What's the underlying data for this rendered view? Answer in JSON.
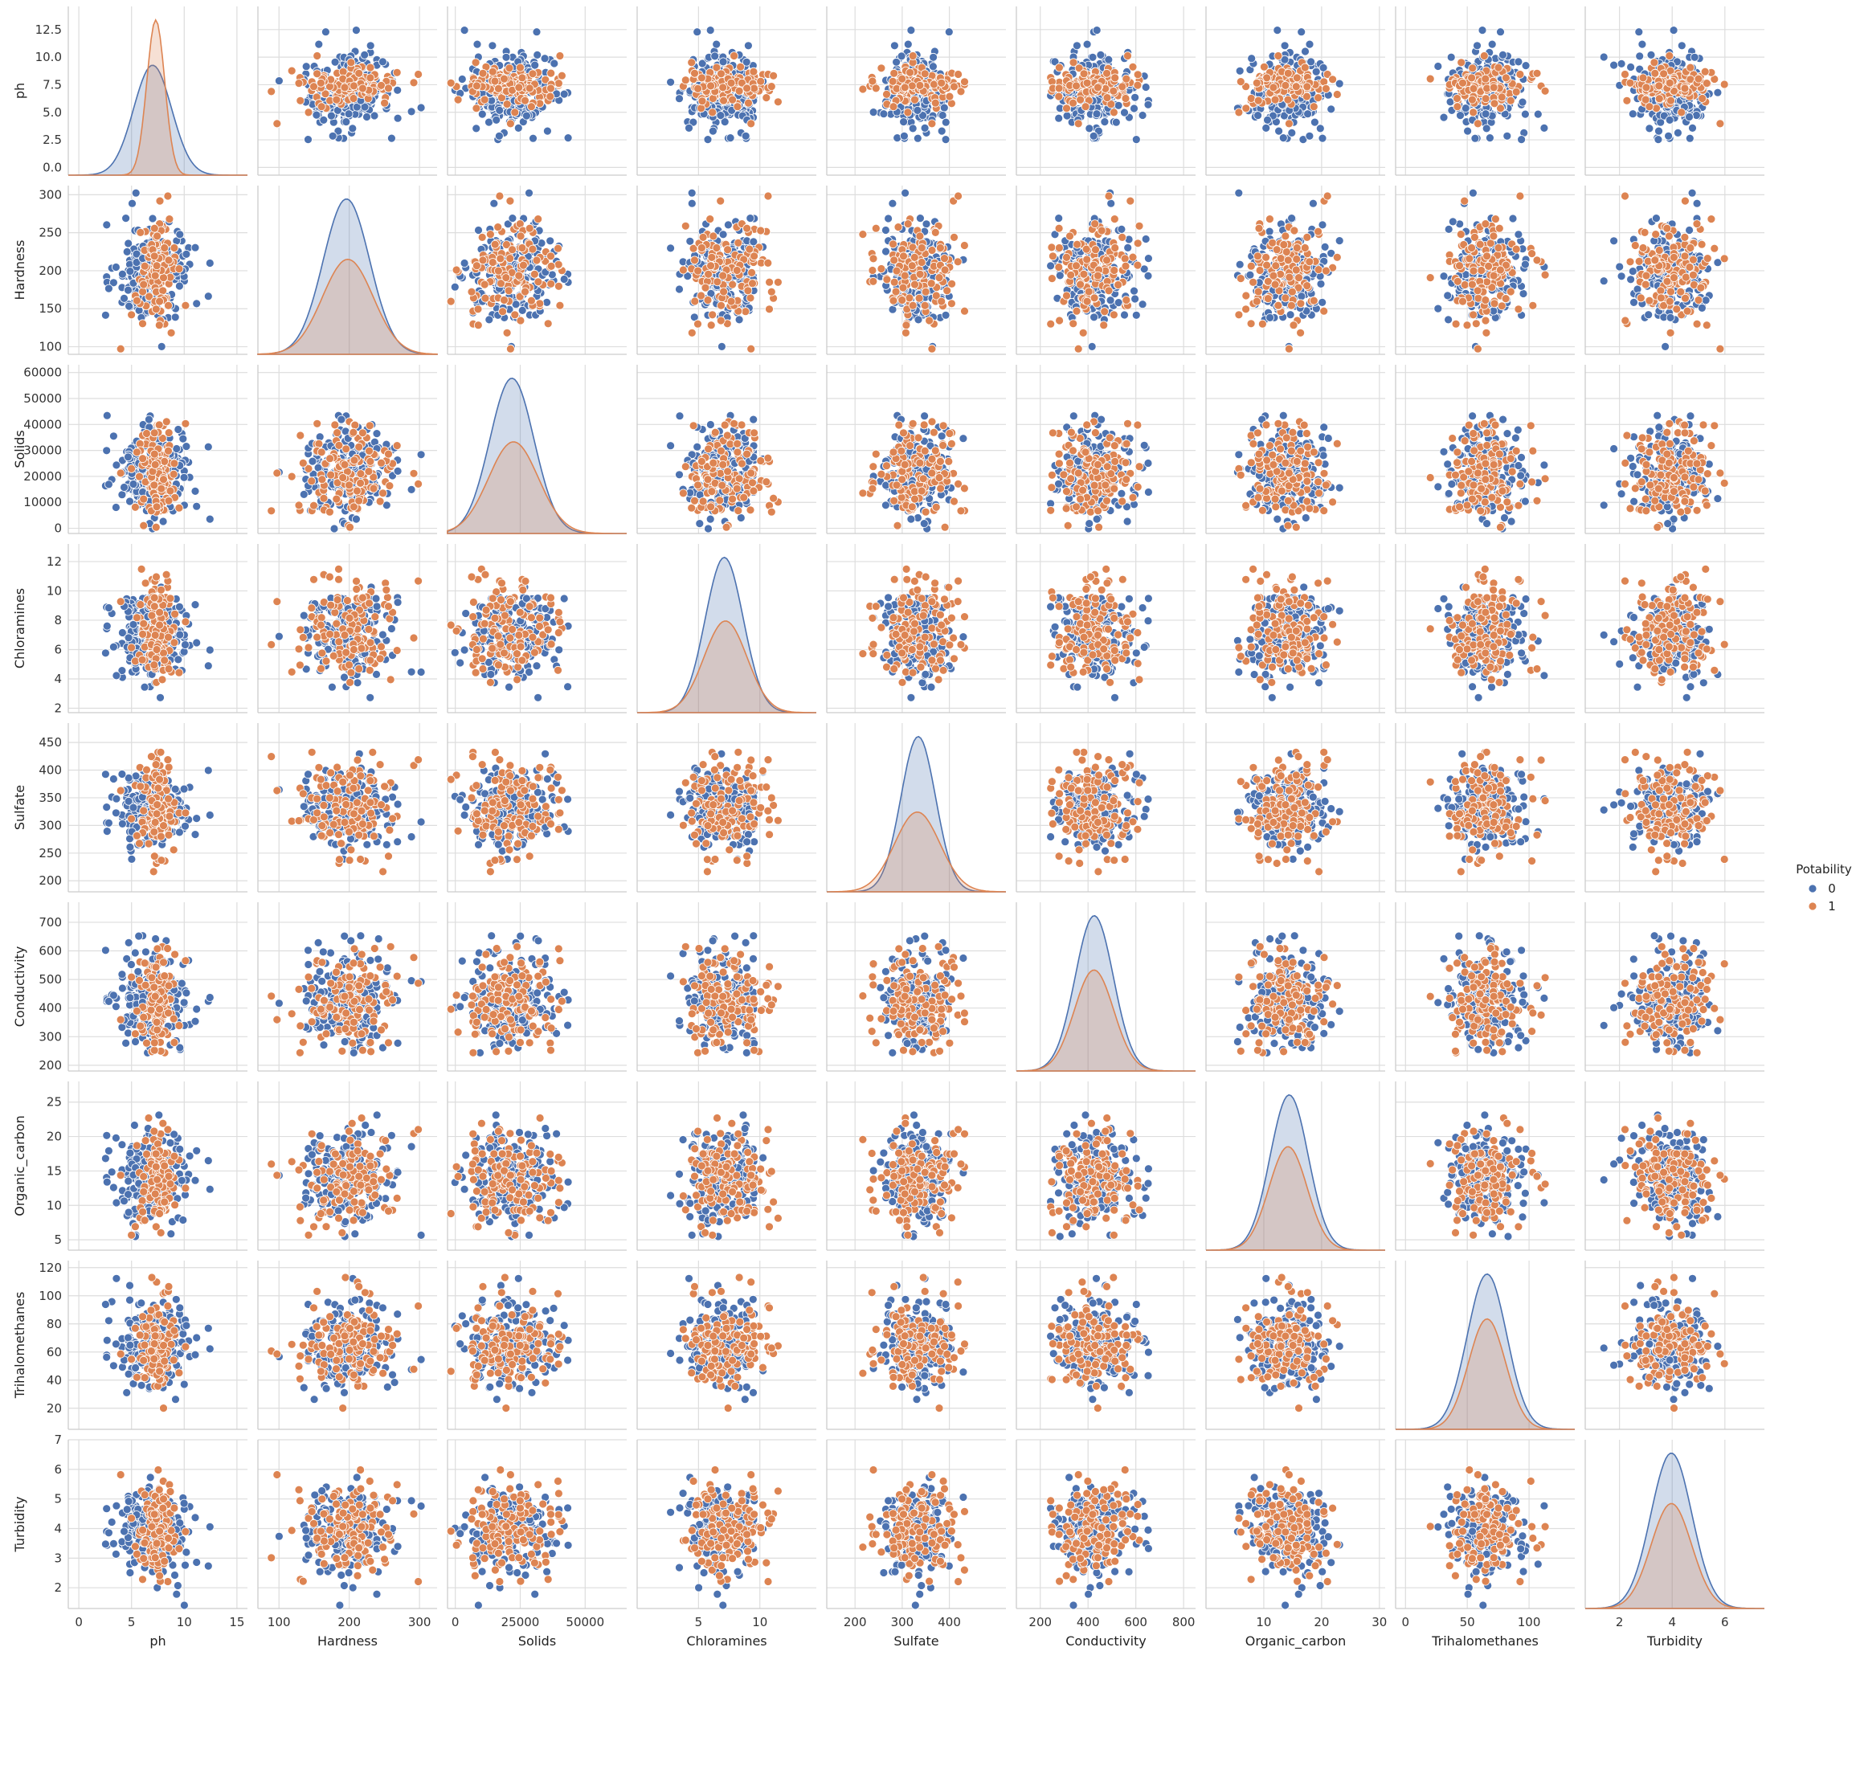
{
  "chart_data": {
    "type": "scatter",
    "subtype": "pairplot",
    "variables": [
      "ph",
      "Hardness",
      "Solids",
      "Chloramines",
      "Sulfate",
      "Conductivity",
      "Organic_carbon",
      "Trihalomethanes",
      "Turbidity"
    ],
    "hue": "Potability",
    "legend": {
      "title": "Potability",
      "placement": "right-center",
      "entries": [
        {
          "label": "0",
          "color": "#4c72b0"
        },
        {
          "label": "1",
          "color": "#dd8452"
        }
      ]
    },
    "grid": true,
    "diagonal": "kde",
    "axes": [
      {
        "name": "ph",
        "range": [
          -1,
          16
        ],
        "ticks": [
          0,
          5,
          10,
          15
        ],
        "tick_labels": [
          "0",
          "5",
          "10",
          "15"
        ],
        "y_range": [
          -0.7,
          14.6
        ],
        "y_ticks": [
          0,
          2.5,
          5,
          7.5,
          10,
          12.5
        ],
        "y_tick_labels": [
          "0.0",
          "2.5",
          "5.0",
          "7.5",
          "10.0",
          "12.5"
        ]
      },
      {
        "name": "Hardness",
        "range": [
          70,
          325
        ],
        "ticks": [
          100,
          200,
          300
        ],
        "tick_labels": [
          "100",
          "200",
          "300"
        ],
        "y_range": [
          90,
          312
        ],
        "y_ticks": [
          100,
          150,
          200,
          250,
          300
        ],
        "y_tick_labels": [
          "100",
          "150",
          "200",
          "250",
          "300"
        ]
      },
      {
        "name": "Solids",
        "range": [
          -3000,
          66000
        ],
        "ticks": [
          0,
          25000,
          50000
        ],
        "tick_labels": [
          "0",
          "25000",
          "50000"
        ],
        "y_range": [
          -2000,
          63000
        ],
        "y_ticks": [
          0,
          10000,
          20000,
          30000,
          40000,
          50000,
          60000
        ],
        "y_tick_labels": [
          "0",
          "10000",
          "20000",
          "30000",
          "40000",
          "50000",
          "60000"
        ]
      },
      {
        "name": "Chloramines",
        "range": [
          0,
          14.6
        ],
        "ticks": [
          5,
          10
        ],
        "tick_labels": [
          "5",
          "10"
        ],
        "y_range": [
          1.7,
          13.2
        ],
        "y_ticks": [
          2,
          4,
          6,
          8,
          10,
          12
        ],
        "y_tick_labels": [
          "2",
          "4",
          "6",
          "8",
          "10",
          "12"
        ]
      },
      {
        "name": "Sulfate",
        "range": [
          140,
          520
        ],
        "ticks": [
          200,
          300,
          400
        ],
        "tick_labels": [
          "200",
          "300",
          "400"
        ],
        "y_range": [
          180,
          485
        ],
        "y_ticks": [
          200,
          250,
          300,
          350,
          400,
          450
        ],
        "y_tick_labels": [
          "200",
          "250",
          "300",
          "350",
          "400",
          "450"
        ]
      },
      {
        "name": "Conductivity",
        "range": [
          100,
          850
        ],
        "ticks": [
          200,
          400,
          600,
          800
        ],
        "tick_labels": [
          "200",
          "400",
          "600",
          "800"
        ],
        "y_range": [
          180,
          770
        ],
        "y_ticks": [
          200,
          300,
          400,
          500,
          600,
          700
        ],
        "y_tick_labels": [
          "200",
          "300",
          "400",
          "500",
          "600",
          "700"
        ]
      },
      {
        "name": "Organic_carbon",
        "range": [
          0,
          31
        ],
        "ticks": [
          10,
          20,
          30
        ],
        "tick_labels": [
          "10",
          "20",
          "30"
        ],
        "y_range": [
          3.5,
          28
        ],
        "y_ticks": [
          5,
          10,
          15,
          20,
          25
        ],
        "y_tick_labels": [
          "5",
          "10",
          "15",
          "20",
          "25"
        ]
      },
      {
        "name": "Trihalomethanes",
        "range": [
          -8,
          137
        ],
        "ticks": [
          0,
          50,
          100
        ],
        "tick_labels": [
          "0",
          "50",
          "100"
        ],
        "y_range": [
          5,
          125
        ],
        "y_ticks": [
          20,
          40,
          60,
          80,
          100,
          120
        ],
        "y_tick_labels": [
          "20",
          "40",
          "60",
          "80",
          "100",
          "120"
        ]
      },
      {
        "name": "Turbidity",
        "range": [
          0.7,
          7.5
        ],
        "ticks": [
          2,
          4,
          6
        ],
        "tick_labels": [
          "2",
          "4",
          "6"
        ],
        "y_range": [
          1.3,
          7.0
        ],
        "y_ticks": [
          2,
          3,
          4,
          5,
          6,
          7
        ],
        "y_tick_labels": [
          "2",
          "3",
          "4",
          "5",
          "6",
          "7"
        ]
      }
    ],
    "series_stats": [
      {
        "name": "0",
        "ph": {
          "mean": 7.0,
          "sd": 1.8
        },
        "Hardness": {
          "mean": 196,
          "sd": 33
        },
        "Solids": {
          "mean": 21800,
          "sd": 8500
        },
        "Chloramines": {
          "mean": 7.1,
          "sd": 1.55
        },
        "Sulfate": {
          "mean": 334,
          "sd": 37
        },
        "Conductivity": {
          "mean": 426,
          "sd": 80
        },
        "Organic_carbon": {
          "mean": 14.4,
          "sd": 3.3
        },
        "Trihalomethanes": {
          "mean": 66,
          "sd": 16
        },
        "Turbidity": {
          "mean": 3.97,
          "sd": 0.78
        }
      },
      {
        "name": "1",
        "ph": {
          "mean": 7.3,
          "sd": 0.85
        },
        "Hardness": {
          "mean": 198,
          "sd": 36
        },
        "Solids": {
          "mean": 22400,
          "sd": 9600
        },
        "Chloramines": {
          "mean": 7.2,
          "sd": 1.75
        },
        "Sulfate": {
          "mean": 332,
          "sd": 48
        },
        "Conductivity": {
          "mean": 425,
          "sd": 82
        },
        "Organic_carbon": {
          "mean": 14.2,
          "sd": 3.3
        },
        "Trihalomethanes": {
          "mean": 66,
          "sd": 15
        },
        "Turbidity": {
          "mean": 3.97,
          "sd": 0.77
        }
      }
    ]
  }
}
